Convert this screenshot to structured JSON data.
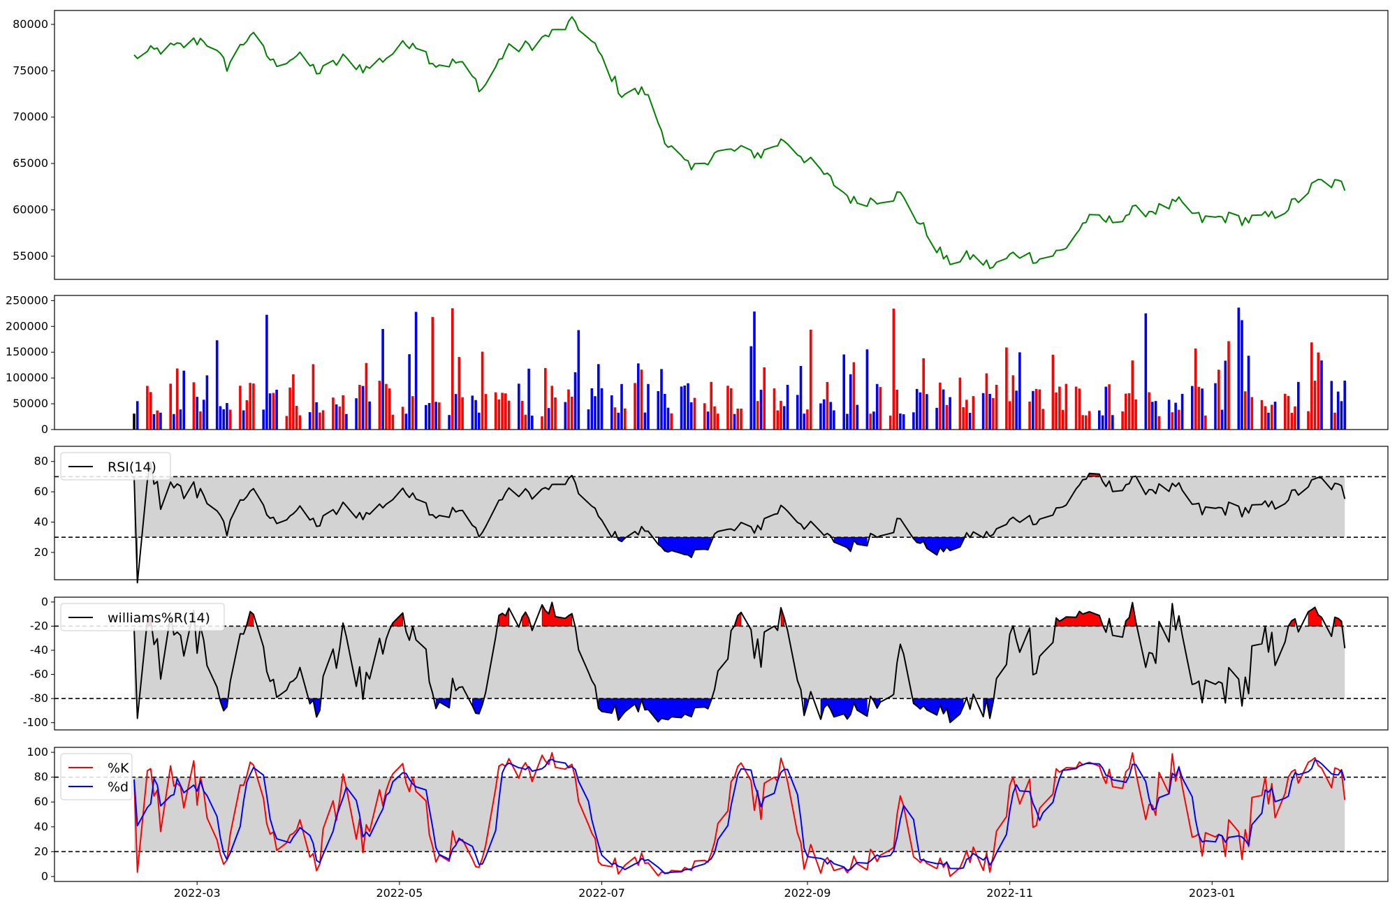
{
  "colors": {
    "price_line": "#008000",
    "volume_up": "#0000ff",
    "volume_down": "#ff0000",
    "volume_flat": "#000000",
    "band_fill": "#d3d3d3",
    "overbought_fill": "#ff0000",
    "oversold_fill": "#0000ff",
    "indicator_line": "#000000",
    "k_line": "#ff0000",
    "d_line": "#0000ff"
  },
  "chart_data": [
    {
      "type": "line",
      "name": "price-panel",
      "ylim": [
        52500,
        81500
      ],
      "yticks": [
        55000,
        60000,
        65000,
        70000,
        75000,
        80000
      ],
      "xlim": [
        "2022-01-17",
        "2023-02-23"
      ],
      "series": [
        {
          "values_anchor": [
            [
              "2022-02-10",
              76500
            ],
            [
              "2022-02-17",
              77200
            ],
            [
              "2022-02-24",
              77600
            ],
            [
              "2022-03-03",
              78500
            ],
            [
              "2022-03-10",
              75500
            ],
            [
              "2022-03-17",
              79000
            ],
            [
              "2022-03-24",
              75800
            ],
            [
              "2022-03-31",
              76600
            ],
            [
              "2022-04-07",
              74800
            ],
            [
              "2022-04-14",
              76300
            ],
            [
              "2022-04-21",
              75200
            ],
            [
              "2022-04-28",
              76700
            ],
            [
              "2022-05-05",
              78300
            ],
            [
              "2022-05-12",
              75700
            ],
            [
              "2022-05-19",
              75900
            ],
            [
              "2022-05-26",
              73000
            ],
            [
              "2022-06-02",
              77200
            ],
            [
              "2022-06-09",
              77700
            ],
            [
              "2022-06-16",
              79000
            ],
            [
              "2022-06-23",
              80300
            ],
            [
              "2022-06-30",
              77000
            ],
            [
              "2022-07-07",
              72500
            ],
            [
              "2022-07-14",
              72800
            ],
            [
              "2022-07-21",
              67000
            ],
            [
              "2022-07-28",
              64200
            ],
            [
              "2022-08-04",
              66100
            ],
            [
              "2022-08-11",
              66400
            ],
            [
              "2022-08-18",
              66000
            ],
            [
              "2022-08-25",
              67600
            ],
            [
              "2022-09-01",
              65300
            ],
            [
              "2022-09-08",
              63200
            ],
            [
              "2022-09-15",
              60900
            ],
            [
              "2022-09-22",
              61200
            ],
            [
              "2022-09-29",
              61600
            ],
            [
              "2022-10-06",
              58000
            ],
            [
              "2022-10-13",
              54400
            ],
            [
              "2022-10-20",
              55000
            ],
            [
              "2022-10-27",
              53800
            ],
            [
              "2022-11-03",
              55400
            ],
            [
              "2022-11-10",
              54700
            ],
            [
              "2022-11-17",
              55600
            ],
            [
              "2022-11-24",
              58900
            ],
            [
              "2022-12-01",
              58800
            ],
            [
              "2022-12-08",
              59800
            ],
            [
              "2022-12-15",
              60000
            ],
            [
              "2022-12-22",
              60700
            ],
            [
              "2022-12-29",
              58900
            ],
            [
              "2023-01-05",
              59200
            ],
            [
              "2023-01-12",
              58900
            ],
            [
              "2023-01-19",
              59300
            ],
            [
              "2023-01-26",
              60800
            ],
            [
              "2023-02-02",
              63000
            ],
            [
              "2023-02-09",
              62700
            ],
            [
              "2023-02-16",
              61000
            ]
          ]
        }
      ]
    },
    {
      "type": "bar",
      "name": "volume-panel",
      "ylim": [
        0,
        260000
      ],
      "yticks": [
        0,
        50000,
        100000,
        150000,
        200000,
        250000
      ]
    },
    {
      "type": "area",
      "name": "rsi-panel",
      "legend": [
        "RSI(14)"
      ],
      "ylim": [
        2,
        90
      ],
      "yticks": [
        20,
        40,
        60,
        80
      ],
      "thresholds": [
        30,
        70
      ]
    },
    {
      "type": "area",
      "name": "williams-panel",
      "legend": [
        "williams%R(14)"
      ],
      "ylim": [
        -106,
        4
      ],
      "yticks": [
        0,
        -20,
        -40,
        -60,
        -80,
        -100
      ],
      "thresholds": [
        -20,
        -80
      ]
    },
    {
      "type": "line",
      "name": "stochastic-panel",
      "legend": [
        "%K",
        "%d"
      ],
      "ylim": [
        -4,
        104
      ],
      "yticks": [
        0,
        20,
        40,
        60,
        80,
        100
      ],
      "thresholds": [
        20,
        80
      ],
      "xticks": [
        "2022-03",
        "2022-05",
        "2022-07",
        "2022-09",
        "2022-11",
        "2023-01"
      ]
    }
  ]
}
